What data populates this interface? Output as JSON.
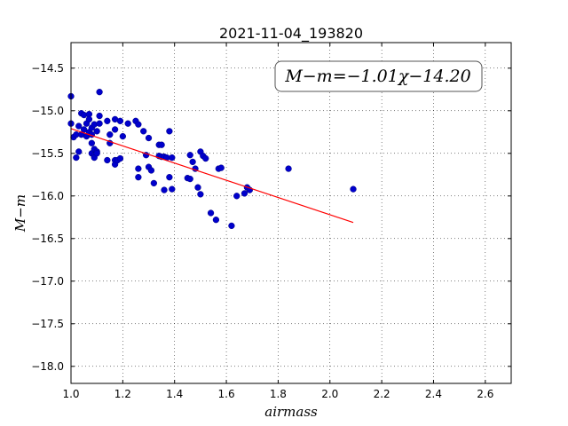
{
  "chart_data": {
    "type": "scatter",
    "title": "2021-11-04_193820",
    "xlabel": "airmass",
    "ylabel": "M−m",
    "xlim": [
      1.0,
      2.7
    ],
    "ylim": [
      -18.2,
      -14.2
    ],
    "x_ticks": [
      "1.0",
      "1.2",
      "1.4",
      "1.6",
      "1.8",
      "2.0",
      "2.2",
      "2.4",
      "2.6"
    ],
    "y_ticks": [
      "−14.5",
      "−15.0",
      "−15.5",
      "−16.0",
      "−16.5",
      "−17.0",
      "−17.5",
      "−18.0"
    ],
    "grid": true,
    "annotation": "M−m=−1.01χ−14.20",
    "annotation_position": "top-right",
    "fit": {
      "slope": -1.01,
      "intercept": -14.2,
      "x_range": [
        1.0,
        2.09
      ],
      "color": "#ff0000"
    },
    "point_color": "#0000cc",
    "x": [
      1.0,
      1.0,
      1.01,
      1.02,
      1.02,
      1.03,
      1.03,
      1.04,
      1.04,
      1.05,
      1.05,
      1.06,
      1.06,
      1.07,
      1.07,
      1.07,
      1.08,
      1.08,
      1.08,
      1.08,
      1.09,
      1.09,
      1.09,
      1.09,
      1.1,
      1.1,
      1.1,
      1.11,
      1.11,
      1.11,
      1.14,
      1.14,
      1.15,
      1.15,
      1.17,
      1.17,
      1.17,
      1.17,
      1.18,
      1.19,
      1.19,
      1.2,
      1.22,
      1.25,
      1.26,
      1.26,
      1.26,
      1.28,
      1.29,
      1.3,
      1.3,
      1.31,
      1.32,
      1.34,
      1.34,
      1.35,
      1.35,
      1.36,
      1.36,
      1.37,
      1.38,
      1.38,
      1.39,
      1.39,
      1.45,
      1.46,
      1.46,
      1.47,
      1.48,
      1.49,
      1.5,
      1.5,
      1.51,
      1.52,
      1.54,
      1.56,
      1.57,
      1.58,
      1.62,
      1.64,
      1.67,
      1.68,
      1.69,
      1.84,
      2.09
    ],
    "y": [
      -14.83,
      -15.15,
      -15.31,
      -15.28,
      -15.55,
      -15.18,
      -15.48,
      -15.03,
      -15.28,
      -15.05,
      -15.22,
      -15.15,
      -15.3,
      -15.04,
      -15.1,
      -15.25,
      -15.2,
      -15.28,
      -15.38,
      -15.5,
      -15.16,
      -15.45,
      -15.52,
      -15.55,
      -15.48,
      -15.5,
      -15.24,
      -14.78,
      -15.06,
      -15.15,
      -15.12,
      -15.58,
      -15.28,
      -15.38,
      -15.1,
      -15.22,
      -15.58,
      -15.63,
      -15.58,
      -15.12,
      -15.56,
      -15.3,
      -15.15,
      -15.12,
      -15.16,
      -15.68,
      -15.78,
      -15.24,
      -15.52,
      -15.32,
      -15.66,
      -15.7,
      -15.85,
      -15.4,
      -15.53,
      -15.4,
      -15.54,
      -15.54,
      -15.93,
      -15.55,
      -15.24,
      -15.78,
      -15.55,
      -15.92,
      -15.79,
      -15.52,
      -15.8,
      -15.6,
      -15.68,
      -15.9,
      -15.98,
      -15.48,
      -15.53,
      -15.56,
      -16.2,
      -16.28,
      -15.68,
      -15.67,
      -16.35,
      -16.0,
      -15.97,
      -15.9,
      -15.93,
      -15.68,
      -15.92
    ]
  }
}
